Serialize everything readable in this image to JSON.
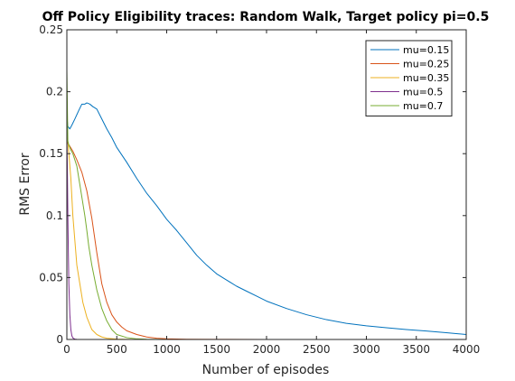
{
  "chart_data": {
    "type": "line",
    "title": "Off Policy Eligibility traces: Random Walk, Target policy pi=0.5",
    "xlabel": "Number of episodes",
    "ylabel": "RMS Error",
    "xlim": [
      0,
      4000
    ],
    "ylim": [
      0,
      0.25
    ],
    "xticks": [
      0,
      500,
      1000,
      1500,
      2000,
      2500,
      3000,
      3500,
      4000
    ],
    "yticks": [
      0,
      0.05,
      0.1,
      0.15,
      0.2,
      0.25
    ],
    "xtick_labels": [
      "0",
      "500",
      "1000",
      "1500",
      "2000",
      "2500",
      "3000",
      "3500",
      "4000"
    ],
    "ytick_labels": [
      "0",
      "0.05",
      "0.1",
      "0.15",
      "0.2",
      "0.25"
    ],
    "grid": false,
    "legend_position": "top-right",
    "series": [
      {
        "name": "mu=0.15",
        "color": "#0072BD",
        "x": [
          0,
          10,
          30,
          50,
          80,
          120,
          150,
          180,
          200,
          230,
          260,
          300,
          350,
          400,
          450,
          500,
          600,
          700,
          800,
          900,
          1000,
          1100,
          1200,
          1300,
          1400,
          1500,
          1600,
          1700,
          1800,
          1900,
          2000,
          2200,
          2400,
          2600,
          2800,
          3000,
          3200,
          3400,
          3600,
          3800,
          4000
        ],
        "y": [
          0.18,
          0.172,
          0.17,
          0.173,
          0.178,
          0.185,
          0.19,
          0.19,
          0.191,
          0.19,
          0.188,
          0.186,
          0.178,
          0.17,
          0.163,
          0.155,
          0.143,
          0.13,
          0.118,
          0.108,
          0.097,
          0.088,
          0.078,
          0.068,
          0.06,
          0.053,
          0.048,
          0.043,
          0.039,
          0.035,
          0.031,
          0.025,
          0.02,
          0.016,
          0.013,
          0.011,
          0.0095,
          0.008,
          0.0068,
          0.0055,
          0.004
        ]
      },
      {
        "name": "mu=0.25",
        "color": "#D95319",
        "x": [
          0,
          10,
          30,
          60,
          100,
          150,
          200,
          250,
          300,
          350,
          400,
          450,
          500,
          550,
          600,
          700,
          800,
          900,
          1000,
          1200,
          1500,
          2000,
          4000
        ],
        "y": [
          0.16,
          0.158,
          0.156,
          0.152,
          0.145,
          0.135,
          0.12,
          0.098,
          0.07,
          0.045,
          0.03,
          0.02,
          0.014,
          0.01,
          0.007,
          0.004,
          0.002,
          0.001,
          0.0005,
          0.0002,
          0.0001,
          0,
          0
        ]
      },
      {
        "name": "mu=0.35",
        "color": "#EDB120",
        "x": [
          0,
          10,
          20,
          40,
          60,
          80,
          100,
          130,
          160,
          200,
          250,
          300,
          350,
          400,
          500,
          600,
          800,
          1000,
          4000
        ],
        "y": [
          0.165,
          0.16,
          0.15,
          0.13,
          0.1,
          0.08,
          0.06,
          0.045,
          0.03,
          0.018,
          0.008,
          0.004,
          0.002,
          0.001,
          0.0003,
          0.0001,
          0,
          0,
          0
        ]
      },
      {
        "name": "mu=0.5",
        "color": "#7E2F8E",
        "x": [
          0,
          5,
          10,
          15,
          20,
          30,
          40,
          50,
          60,
          80,
          100,
          150,
          200,
          4000
        ],
        "y": [
          0.165,
          0.14,
          0.1,
          0.07,
          0.045,
          0.02,
          0.008,
          0.003,
          0.0012,
          0.0003,
          0.0001,
          0,
          0,
          0
        ]
      },
      {
        "name": "mu=0.7",
        "color": "#77AC30",
        "x": [
          0,
          10,
          20,
          40,
          60,
          80,
          100,
          120,
          150,
          180,
          200,
          220,
          250,
          300,
          350,
          400,
          450,
          500,
          600,
          700,
          800,
          1000,
          4000
        ],
        "y": [
          0.218,
          0.16,
          0.157,
          0.153,
          0.15,
          0.145,
          0.14,
          0.13,
          0.115,
          0.1,
          0.088,
          0.075,
          0.06,
          0.04,
          0.025,
          0.015,
          0.008,
          0.004,
          0.0015,
          0.0005,
          0.0002,
          0,
          0
        ]
      }
    ]
  }
}
